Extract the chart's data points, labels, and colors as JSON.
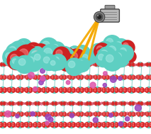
{
  "bg_color": "#ffffff",
  "mof_teal": "#5ecfc2",
  "mof_teal_dark": "#3aafa2",
  "mof_teal_light": "#90e0d8",
  "linker_pink": "#e06080",
  "linker_red": "#cc3333",
  "oxygen_red": "#dd2222",
  "purple": "#9944bb",
  "pink": "#dd55aa",
  "white_hl": "#ddf5f3",
  "beam_orange": "#f5a800",
  "lamp_light": "#cccccc",
  "lamp_mid": "#999999",
  "lamp_dark": "#555555",
  "cap_teal": "#5ecfc2",
  "cap_teal_hl": "#b0ede8",
  "cap_red": "#cc2222",
  "cap_white": "#e0f5f3",
  "figsize": [
    2.13,
    1.89
  ],
  "dpi": 100
}
